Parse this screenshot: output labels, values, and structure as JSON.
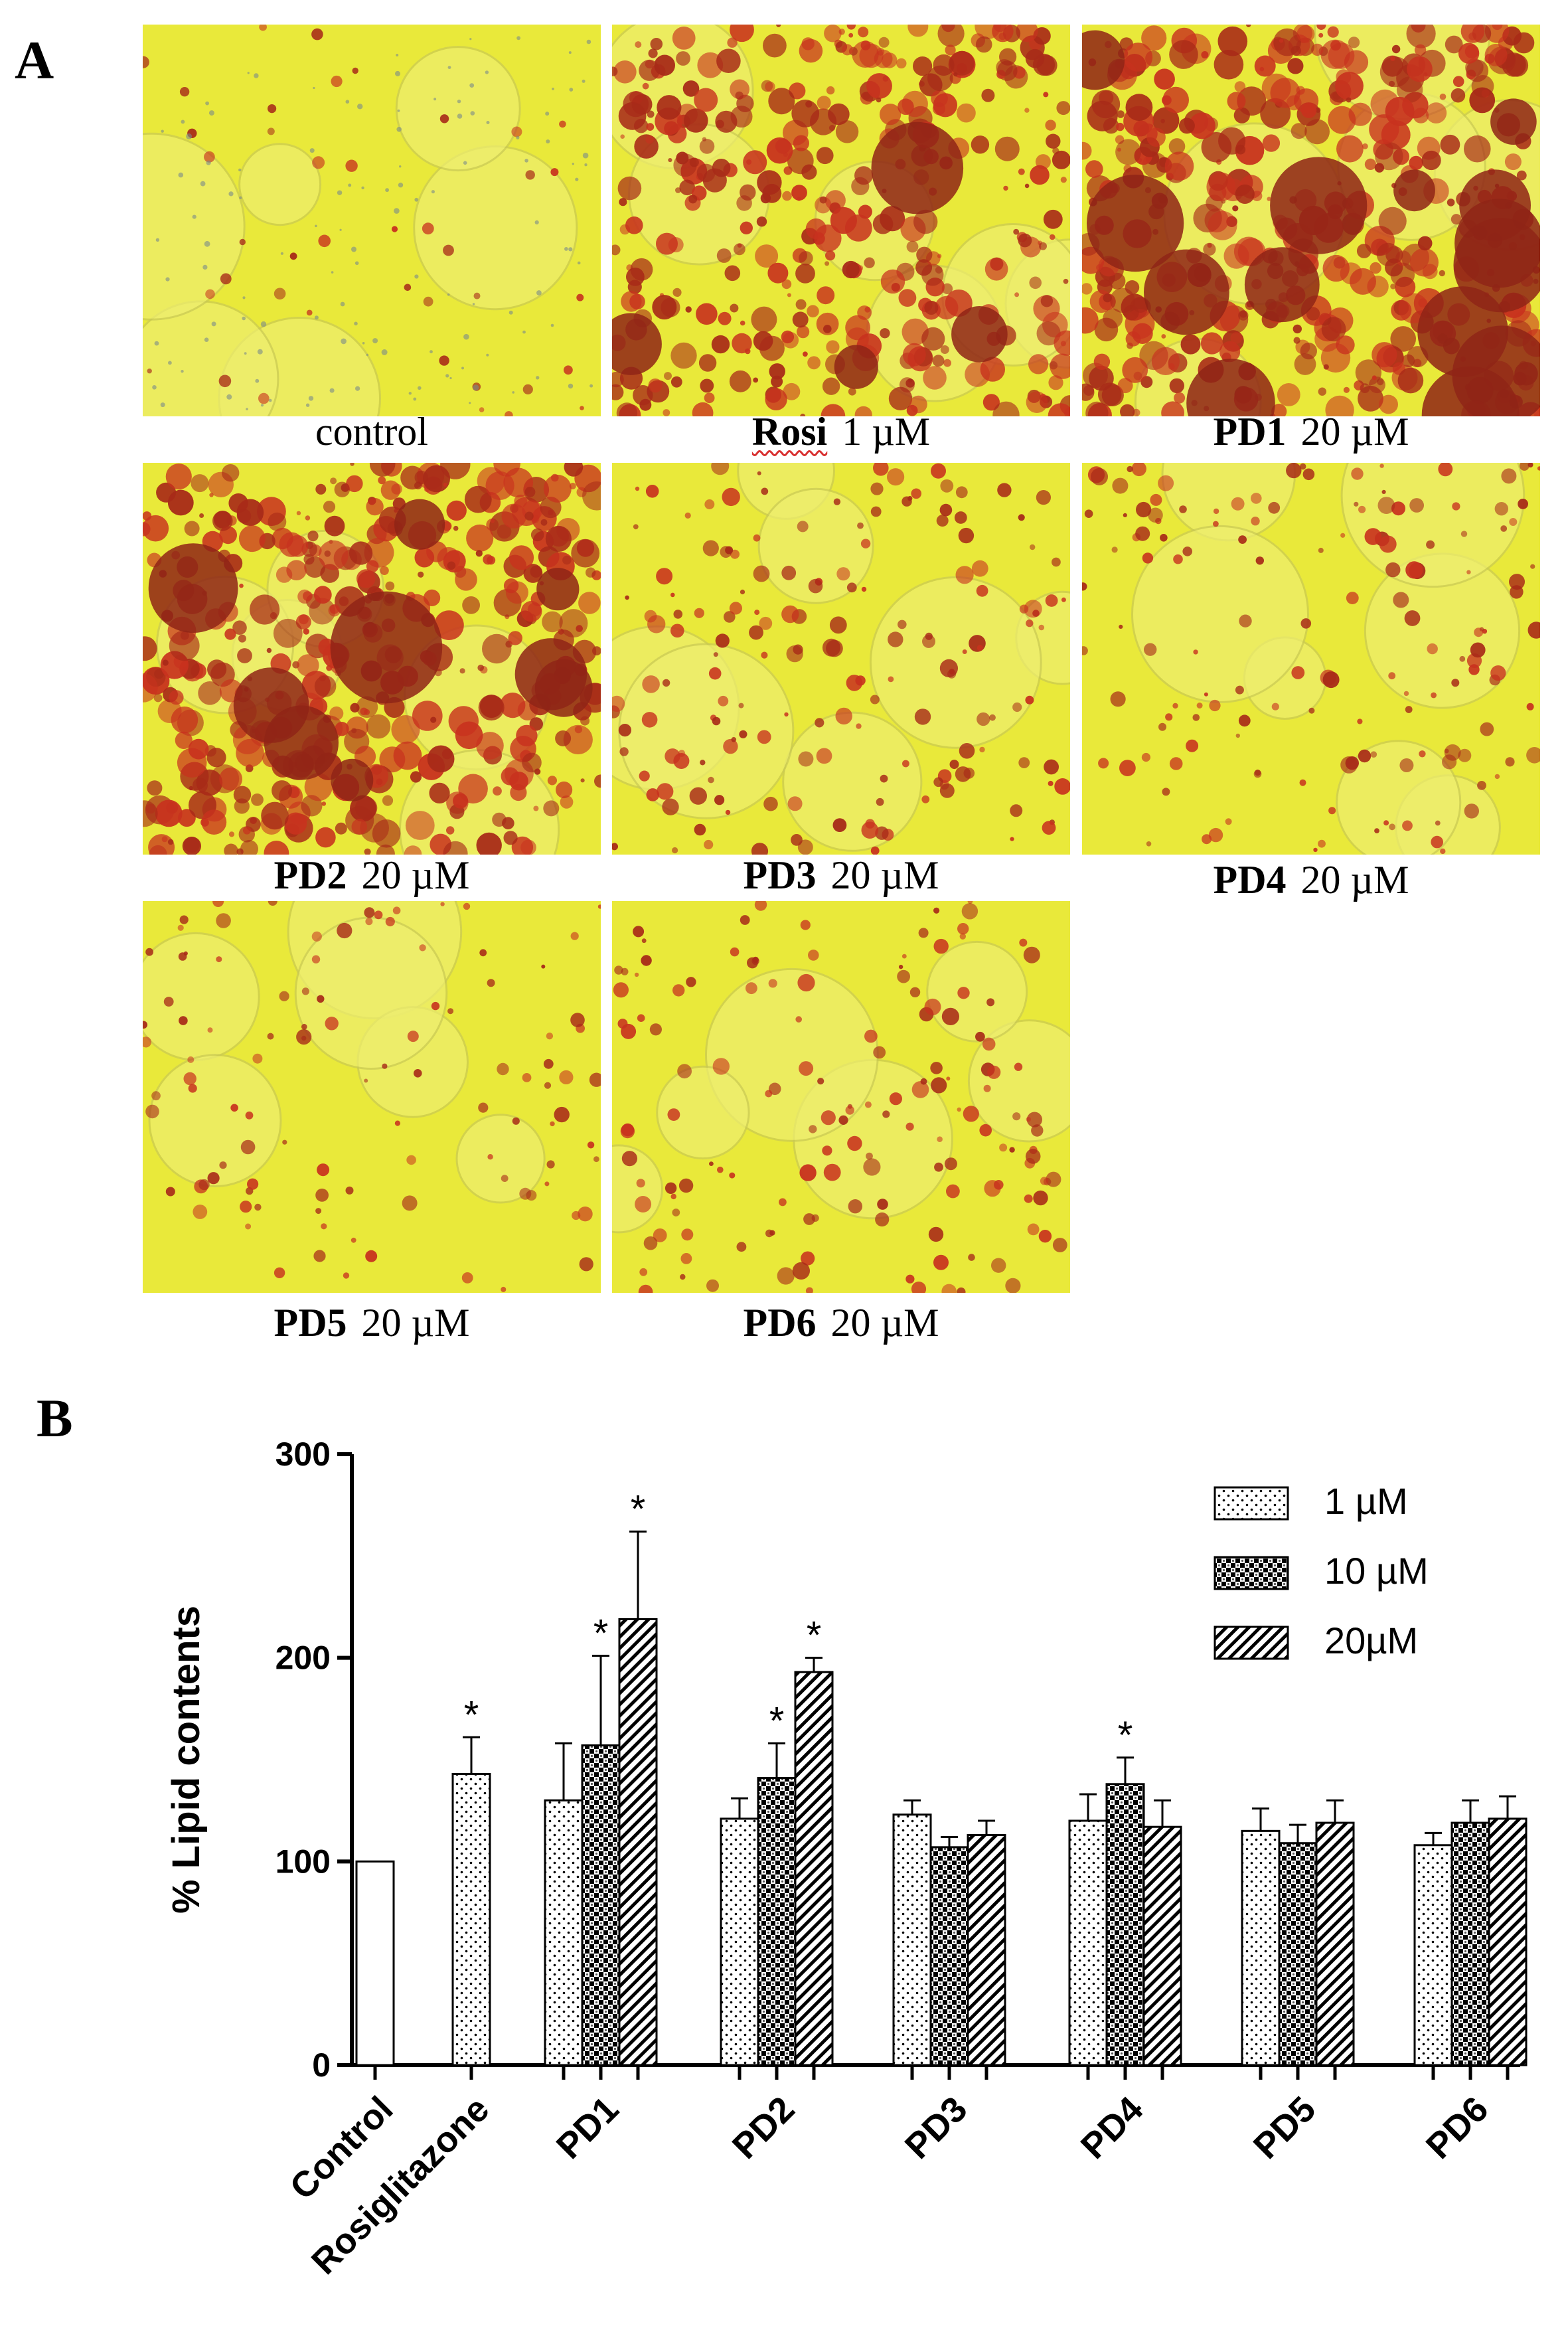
{
  "panels": {
    "a": "A",
    "b": "B"
  },
  "micrographs": [
    {
      "name": "",
      "dose": "control"
    },
    {
      "name": "Rosi",
      "dose": "1 µM"
    },
    {
      "name": "PD1",
      "dose": "20 µM"
    },
    {
      "name": "PD2",
      "dose": "20 µM"
    },
    {
      "name": "PD3",
      "dose": "20 µM"
    },
    {
      "name": "PD4",
      "dose": "20 µM"
    },
    {
      "name": "PD5",
      "dose": "20 µM"
    },
    {
      "name": "PD6",
      "dose": "20 µM"
    }
  ],
  "chart_data": {
    "type": "bar",
    "ylabel": "% Lipid contents",
    "ylim": [
      0,
      300
    ],
    "yticks": [
      0,
      100,
      200,
      300
    ],
    "categories": [
      "Control",
      "Rosiglitazone",
      "PD1",
      "PD2",
      "PD3",
      "PD4",
      "PD5",
      "PD6"
    ],
    "legend_position": "top-right",
    "series": [
      {
        "name": "Control",
        "pattern": "open",
        "values": [
          100,
          null,
          null,
          null,
          null,
          null,
          null,
          null
        ],
        "errors": [
          0,
          null,
          null,
          null,
          null,
          null,
          null,
          null
        ],
        "significant": [
          false,
          null,
          null,
          null,
          null,
          null,
          null,
          null
        ]
      },
      {
        "name": "1 µM",
        "pattern": "dots",
        "values": [
          null,
          143,
          130,
          121,
          123,
          120,
          115,
          108
        ],
        "errors": [
          null,
          18,
          28,
          10,
          7,
          13,
          11,
          6
        ],
        "significant": [
          null,
          true,
          false,
          false,
          false,
          false,
          false,
          false
        ]
      },
      {
        "name": "10 µM",
        "pattern": "checker",
        "values": [
          null,
          null,
          157,
          141,
          107,
          138,
          109,
          119
        ],
        "errors": [
          null,
          null,
          44,
          17,
          5,
          13,
          9,
          11
        ],
        "significant": [
          null,
          null,
          true,
          true,
          false,
          true,
          false,
          false
        ]
      },
      {
        "name": "20µM",
        "pattern": "hatch",
        "values": [
          null,
          null,
          219,
          193,
          113,
          117,
          119,
          121
        ],
        "errors": [
          null,
          null,
          43,
          7,
          7,
          13,
          11,
          11
        ],
        "significant": [
          null,
          null,
          true,
          true,
          false,
          false,
          false,
          false
        ]
      }
    ],
    "significance_marker": "*",
    "colors": {
      "bar_fill": "#ffffff",
      "stroke": "#000000"
    }
  }
}
